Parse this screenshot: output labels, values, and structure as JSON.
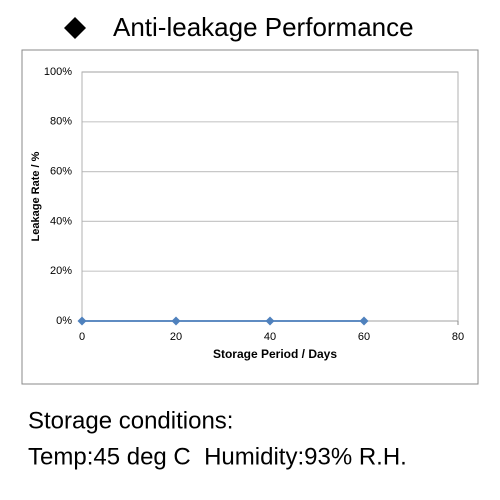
{
  "chart_data": {
    "type": "line",
    "title": "Anti-leakage Performance",
    "x": [
      0,
      20,
      40,
      60
    ],
    "series": [
      {
        "name": "Leakage Rate",
        "color": "#4a7ebb",
        "values": [
          0,
          0,
          0,
          0
        ]
      }
    ],
    "xlim": [
      0,
      80
    ],
    "xticks": [
      0,
      20,
      40,
      60,
      80
    ],
    "ylim": [
      0,
      100
    ],
    "yticks": [
      {
        "value": 0,
        "label": "0%"
      },
      {
        "value": 20,
        "label": "20%"
      },
      {
        "value": 40,
        "label": "40%"
      },
      {
        "value": 60,
        "label": "60%"
      },
      {
        "value": 80,
        "label": "80%"
      },
      {
        "value": 100,
        "label": "100%"
      }
    ],
    "xlabel": "Storage Period / Days",
    "ylabel": "Leakage Rate / %",
    "grid": true
  },
  "notes": [
    "Storage conditions:",
    "Temp:45 deg C  Humidity:93% R.H."
  ]
}
